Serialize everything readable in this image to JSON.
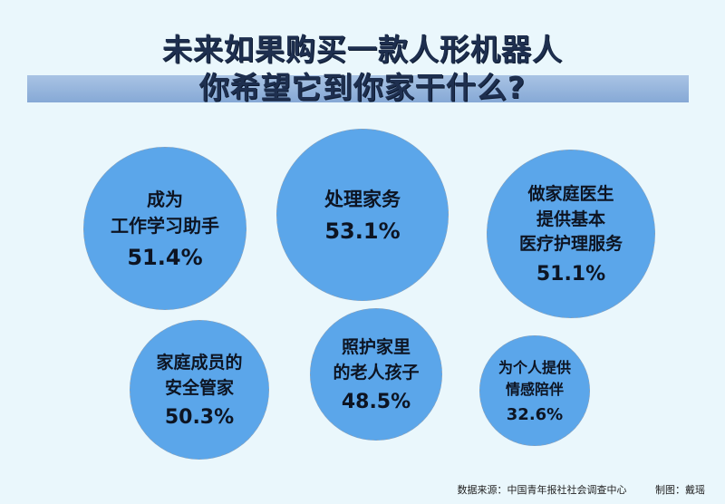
{
  "title_lines": [
    "未来如果购买一款人形机器人",
    "你希望它到你家干什么?"
  ],
  "chart_data": {
    "type": "bubble",
    "title": "未来如果购买一款人形机器人 你希望它到你家干什么?",
    "unit": "%",
    "categories": [
      [
        "成为",
        "工作学习助手"
      ],
      [
        "处理家务"
      ],
      [
        "做家庭医生",
        "提供基本",
        "医疗护理服务"
      ],
      [
        "家庭成员的",
        "安全管家"
      ],
      [
        "照护家里",
        "的老人孩子"
      ],
      [
        "为个人提供",
        "情感陪伴"
      ]
    ],
    "values": [
      51.4,
      53.1,
      51.1,
      50.3,
      48.5,
      32.6
    ],
    "value_labels": [
      "51.4%",
      "53.1%",
      "51.1%",
      "50.3%",
      "48.5%",
      "32.6%"
    ],
    "bubble_color": "#5ba6ea"
  },
  "footer": {
    "source": "数据来源：中国青年报社社会调查中心",
    "credit": "制图：戴瑶"
  }
}
